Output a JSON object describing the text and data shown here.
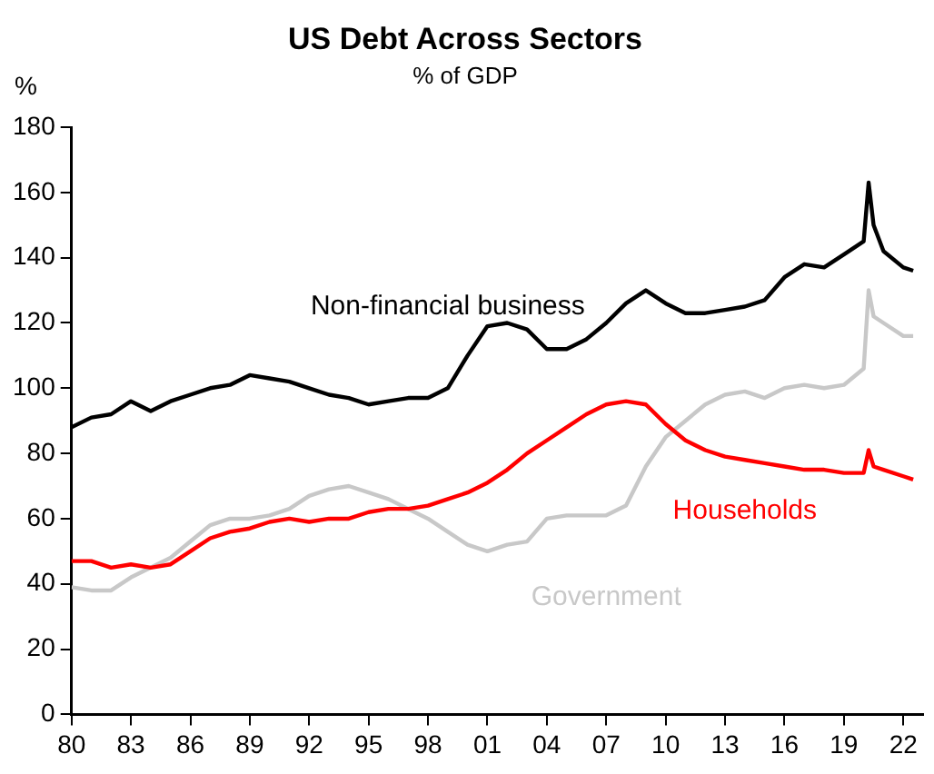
{
  "chart_data": {
    "type": "line",
    "title": "US Debt Across Sectors",
    "subtitle": "% of GDP",
    "ylabel": "%",
    "x": [
      1980,
      1981,
      1982,
      1983,
      1984,
      1985,
      1986,
      1987,
      1988,
      1989,
      1990,
      1991,
      1992,
      1993,
      1994,
      1995,
      1996,
      1997,
      1998,
      1999,
      2000,
      2001,
      2002,
      2003,
      2004,
      2005,
      2006,
      2007,
      2008,
      2009,
      2010,
      2011,
      2012,
      2013,
      2014,
      2015,
      2016,
      2017,
      2018,
      2019,
      2020,
      2020.25,
      2020.5,
      2021,
      2022,
      2022.5
    ],
    "series": [
      {
        "name": "Non-financial business",
        "color": "#000000",
        "values": [
          88,
          91,
          92,
          96,
          93,
          96,
          98,
          100,
          101,
          104,
          103,
          102,
          100,
          98,
          97,
          95,
          96,
          97,
          97,
          100,
          110,
          119,
          120,
          118,
          112,
          112,
          115,
          120,
          126,
          130,
          126,
          123,
          123,
          124,
          125,
          127,
          134,
          138,
          137,
          141,
          145,
          163,
          150,
          142,
          137,
          136
        ]
      },
      {
        "name": "Households",
        "color": "#ff0000",
        "values": [
          47,
          47,
          45,
          46,
          45,
          46,
          50,
          54,
          56,
          57,
          59,
          60,
          59,
          60,
          60,
          62,
          63,
          63,
          64,
          66,
          68,
          71,
          75,
          80,
          84,
          88,
          92,
          95,
          96,
          95,
          89,
          84,
          81,
          79,
          78,
          77,
          76,
          75,
          75,
          74,
          74,
          81,
          76,
          75,
          73,
          72
        ]
      },
      {
        "name": "Government",
        "color": "#c8c8c8",
        "values": [
          39,
          38,
          38,
          42,
          45,
          48,
          53,
          58,
          60,
          60,
          61,
          63,
          67,
          69,
          70,
          68,
          66,
          63,
          60,
          56,
          52,
          50,
          52,
          53,
          60,
          61,
          61,
          61,
          64,
          76,
          85,
          90,
          95,
          98,
          99,
          97,
          100,
          101,
          100,
          101,
          106,
          130,
          122,
          120,
          116,
          116
        ]
      }
    ],
    "xlim": [
      1980,
      2023
    ],
    "xticks": [
      {
        "value": 1980,
        "label": "80"
      },
      {
        "value": 1983,
        "label": "83"
      },
      {
        "value": 1986,
        "label": "86"
      },
      {
        "value": 1989,
        "label": "89"
      },
      {
        "value": 1992,
        "label": "92"
      },
      {
        "value": 1995,
        "label": "95"
      },
      {
        "value": 1998,
        "label": "98"
      },
      {
        "value": 2001,
        "label": "01"
      },
      {
        "value": 2004,
        "label": "04"
      },
      {
        "value": 2007,
        "label": "07"
      },
      {
        "value": 2010,
        "label": "10"
      },
      {
        "value": 2013,
        "label": "13"
      },
      {
        "value": 2016,
        "label": "16"
      },
      {
        "value": 2019,
        "label": "19"
      },
      {
        "value": 2022,
        "label": "22"
      }
    ],
    "ylim": [
      0,
      180
    ],
    "yticks": [
      0,
      20,
      40,
      60,
      80,
      100,
      120,
      140,
      160,
      180
    ],
    "grid": false,
    "legend": false,
    "marker": "none",
    "line_style": "solid"
  }
}
